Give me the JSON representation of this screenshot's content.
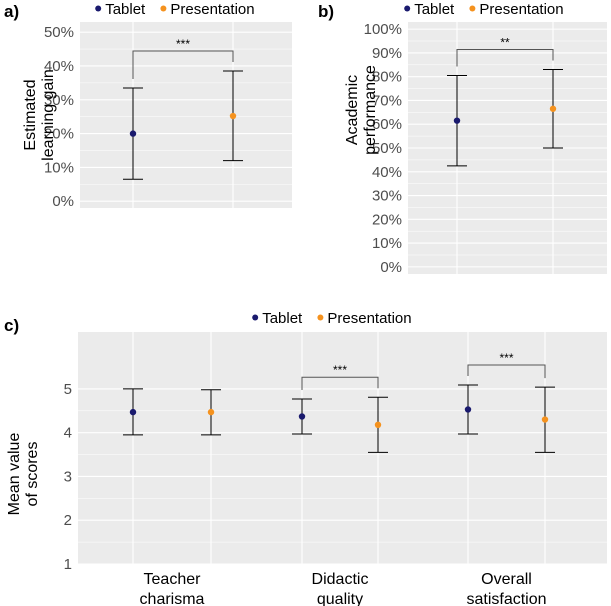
{
  "colors": {
    "tablet": "#1a1a6e",
    "presentation": "#f5921e",
    "panel_background": "#ebebeb",
    "grid": "#ffffff",
    "errorbar": "#000000"
  },
  "chart_data": [
    {
      "id": "a",
      "panel_label": "a)",
      "type": "scatter",
      "legend": {
        "position": "top",
        "entries": [
          "Tablet",
          "Presentation"
        ]
      },
      "ylabel_lines": [
        "Estimated",
        "learning gain"
      ],
      "ylim": [
        -0.02,
        0.53
      ],
      "yticks": [
        0,
        0.1,
        0.2,
        0.3,
        0.4,
        0.5
      ],
      "ytick_labels": [
        "0%",
        "10%",
        "20%",
        "30%",
        "40%",
        "50%"
      ],
      "grid": true,
      "groups": [
        {
          "label": "",
          "points": [
            {
              "series": "Tablet",
              "mean": 0.2,
              "low": 0.065,
              "high": 0.335
            },
            {
              "series": "Presentation",
              "mean": 0.252,
              "low": 0.12,
              "high": 0.385
            }
          ],
          "significance": "***"
        }
      ]
    },
    {
      "id": "b",
      "panel_label": "b)",
      "type": "scatter",
      "legend": {
        "position": "top",
        "entries": [
          "Tablet",
          "Presentation"
        ]
      },
      "ylabel_lines": [
        "Academic",
        "performance"
      ],
      "ylim": [
        -0.03,
        1.03
      ],
      "yticks": [
        0,
        0.1,
        0.2,
        0.3,
        0.4,
        0.5,
        0.6,
        0.7,
        0.8,
        0.9,
        1.0
      ],
      "ytick_labels": [
        "0%",
        "10%",
        "20%",
        "30%",
        "40%",
        "50%",
        "60%",
        "70%",
        "80%",
        "90%",
        "100%"
      ],
      "grid": true,
      "groups": [
        {
          "label": "",
          "points": [
            {
              "series": "Tablet",
              "mean": 0.615,
              "low": 0.425,
              "high": 0.805
            },
            {
              "series": "Presentation",
              "mean": 0.665,
              "low": 0.5,
              "high": 0.83
            }
          ],
          "significance": "**"
        }
      ]
    },
    {
      "id": "c",
      "panel_label": "c)",
      "type": "scatter",
      "legend": {
        "position": "top",
        "entries": [
          "Tablet",
          "Presentation"
        ]
      },
      "ylabel_lines": [
        "Mean value",
        "of scores"
      ],
      "ylim": [
        1,
        6.3
      ],
      "yticks": [
        1,
        2,
        3,
        4,
        5
      ],
      "ytick_labels": [
        "1",
        "2",
        "3",
        "4",
        "5"
      ],
      "grid": true,
      "groups": [
        {
          "label": "Teacher charisma",
          "label_lines": [
            "Teacher",
            "charisma"
          ],
          "points": [
            {
              "series": "Tablet",
              "mean": 4.47,
              "low": 3.95,
              "high": 5.0
            },
            {
              "series": "Presentation",
              "mean": 4.47,
              "low": 3.95,
              "high": 4.98
            }
          ],
          "significance": ""
        },
        {
          "label": "Didactic quality",
          "label_lines": [
            "Didactic",
            "quality"
          ],
          "points": [
            {
              "series": "Tablet",
              "mean": 4.37,
              "low": 3.97,
              "high": 4.77
            },
            {
              "series": "Presentation",
              "mean": 4.18,
              "low": 3.55,
              "high": 4.81
            }
          ],
          "significance": "***"
        },
        {
          "label": "Overall satisfaction",
          "label_lines": [
            "Overall",
            "satisfaction"
          ],
          "points": [
            {
              "series": "Tablet",
              "mean": 4.53,
              "low": 3.97,
              "high": 5.09
            },
            {
              "series": "Presentation",
              "mean": 4.3,
              "low": 3.55,
              "high": 5.04
            }
          ],
          "significance": "***"
        }
      ]
    }
  ]
}
